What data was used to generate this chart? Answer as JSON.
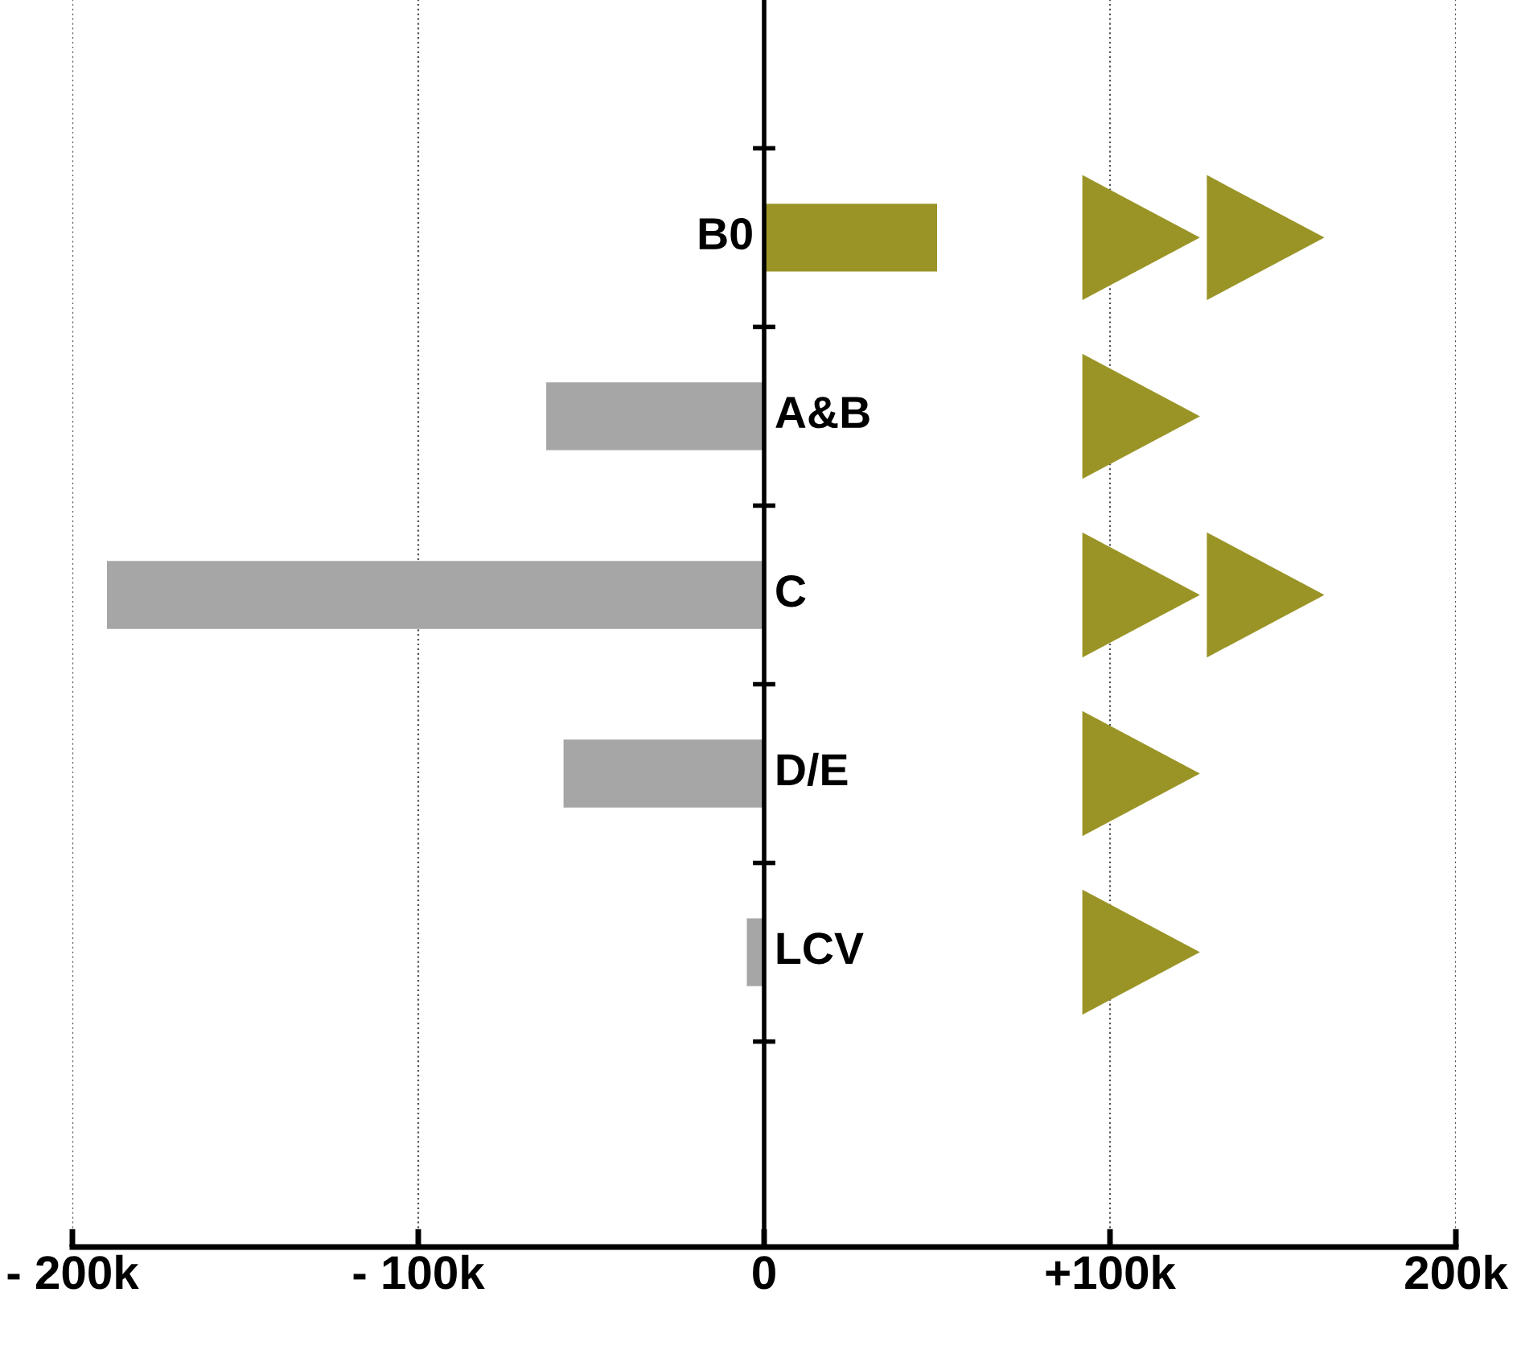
{
  "chart_data": {
    "type": "bar",
    "orientation": "horizontal",
    "categories": [
      "B0",
      "A&B",
      "C",
      "D/E",
      "LCV"
    ],
    "values": [
      50000,
      -63000,
      -190000,
      -58000,
      -5000
    ],
    "colors": [
      "#9a9426",
      "#a6a6a6",
      "#a6a6a6",
      "#a6a6a6",
      "#a6a6a6"
    ],
    "xlim": [
      -200000,
      200000
    ],
    "xticks": [
      {
        "value": -200000,
        "label": "- 200k"
      },
      {
        "value": -100000,
        "label": "- 100k"
      },
      {
        "value": 0,
        "label": "0"
      },
      {
        "value": 100000,
        "label": "+100k"
      },
      {
        "value": 200000,
        "label": "200k"
      }
    ],
    "grid": "x"
  }
}
